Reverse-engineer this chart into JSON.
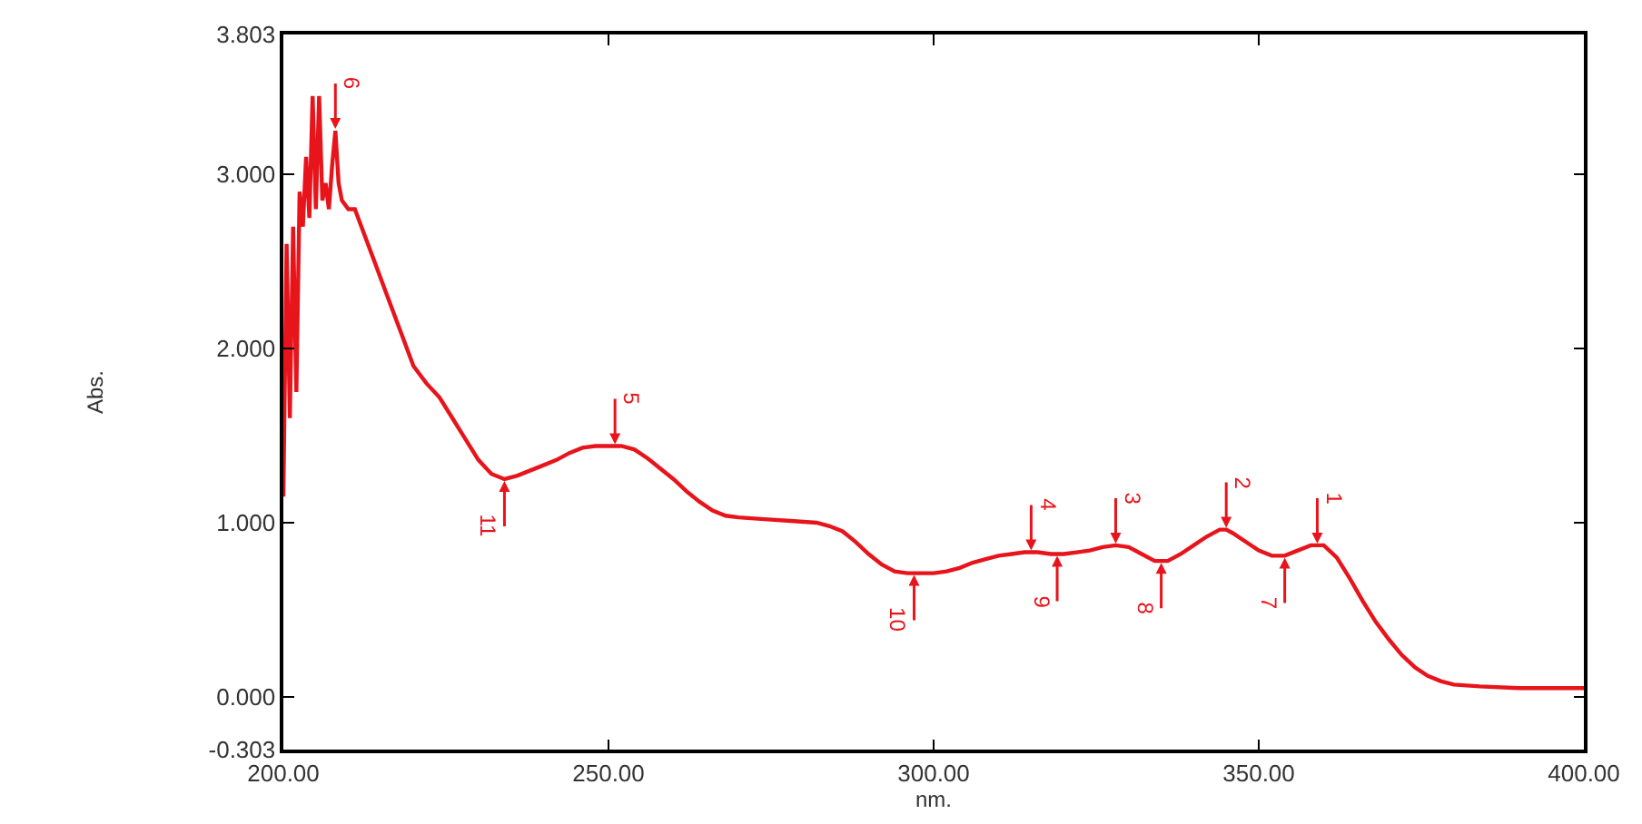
{
  "chart_data": {
    "type": "line",
    "xlabel": "nm.",
    "ylabel": "Abs.",
    "x": [
      200,
      200.5,
      201,
      201.5,
      202,
      202.5,
      203,
      203.5,
      204,
      204.5,
      205,
      205.5,
      206,
      206.5,
      207,
      207.5,
      208,
      208.5,
      209,
      210,
      211,
      212,
      214,
      216,
      218,
      220,
      222,
      224,
      226,
      228,
      230,
      232,
      234,
      236,
      238,
      240,
      242,
      244,
      246,
      248,
      250,
      252,
      254,
      256,
      258,
      260,
      262,
      264,
      266,
      268,
      270,
      274,
      278,
      282,
      284,
      286,
      288,
      290,
      292,
      294,
      296,
      298,
      300,
      302,
      304,
      306,
      308,
      310,
      312,
      314,
      316,
      318,
      320,
      322,
      324,
      326,
      328,
      330,
      332,
      334,
      336,
      338,
      340,
      342,
      344,
      345,
      346,
      348,
      350,
      352,
      354,
      356,
      358,
      360,
      362,
      364,
      366,
      368,
      370,
      372,
      374,
      376,
      378,
      380,
      384,
      390,
      395,
      400
    ],
    "series": [
      {
        "color": "#e8141b",
        "values": [
          1.15,
          2.6,
          1.6,
          2.7,
          1.75,
          2.9,
          2.7,
          3.1,
          2.75,
          3.45,
          2.8,
          3.45,
          2.85,
          2.95,
          2.8,
          3.05,
          3.25,
          2.95,
          2.85,
          2.8,
          2.8,
          2.7,
          2.5,
          2.3,
          2.1,
          1.9,
          1.8,
          1.72,
          1.6,
          1.48,
          1.36,
          1.28,
          1.25,
          1.27,
          1.3,
          1.33,
          1.36,
          1.4,
          1.43,
          1.44,
          1.44,
          1.44,
          1.42,
          1.37,
          1.31,
          1.25,
          1.18,
          1.12,
          1.07,
          1.04,
          1.03,
          1.02,
          1.01,
          1.0,
          0.98,
          0.95,
          0.89,
          0.82,
          0.76,
          0.72,
          0.71,
          0.71,
          0.71,
          0.72,
          0.74,
          0.77,
          0.79,
          0.81,
          0.82,
          0.83,
          0.83,
          0.82,
          0.82,
          0.83,
          0.84,
          0.86,
          0.87,
          0.86,
          0.82,
          0.78,
          0.78,
          0.82,
          0.87,
          0.92,
          0.96,
          0.96,
          0.94,
          0.89,
          0.84,
          0.81,
          0.81,
          0.84,
          0.87,
          0.87,
          0.8,
          0.68,
          0.55,
          0.43,
          0.33,
          0.24,
          0.17,
          0.12,
          0.09,
          0.07,
          0.06,
          0.05,
          0.05,
          0.05
        ]
      }
    ],
    "xlim": [
      200,
      400
    ],
    "ylim": [
      -0.303,
      3.803
    ],
    "xticks": [
      {
        "value": 200,
        "label": "200.00"
      },
      {
        "value": 250,
        "label": "250.00"
      },
      {
        "value": 300,
        "label": "300.00"
      },
      {
        "value": 350,
        "label": "350.00"
      },
      {
        "value": 400,
        "label": "400.00"
      }
    ],
    "yticks": [
      {
        "value": -0.303,
        "label": "-0.303"
      },
      {
        "value": 0,
        "label": "0.000"
      },
      {
        "value": 1,
        "label": "1.000"
      },
      {
        "value": 2,
        "label": "2.000"
      },
      {
        "value": 3,
        "label": "3.000"
      },
      {
        "value": 3.803,
        "label": "3.803"
      }
    ],
    "marker": "none",
    "line_style": "solid",
    "annotations": [
      {
        "text": "1",
        "x": 359,
        "y": 0.87
      },
      {
        "text": "2",
        "x": 345,
        "y": 0.96
      },
      {
        "text": "3",
        "x": 328,
        "y": 0.87
      },
      {
        "text": "4",
        "x": 315,
        "y": 0.83
      },
      {
        "text": "5",
        "x": 251,
        "y": 1.44
      },
      {
        "text": "6",
        "x": 208,
        "y": 3.25
      },
      {
        "text": "7",
        "x": 354,
        "y": 0.81
      },
      {
        "text": "8",
        "x": 335,
        "y": 0.78
      },
      {
        "text": "9",
        "x": 319,
        "y": 0.82
      },
      {
        "text": "10",
        "x": 297,
        "y": 0.71
      },
      {
        "text": "11",
        "x": 234,
        "y": 1.25
      }
    ]
  }
}
